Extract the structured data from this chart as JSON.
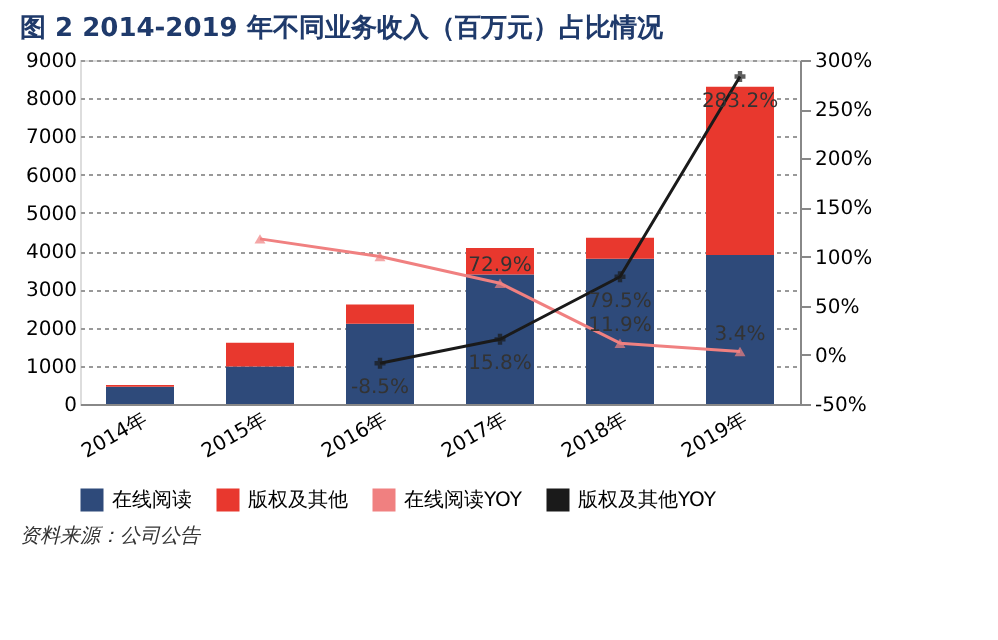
{
  "chart_data": {
    "type": "bar",
    "title": "图 2 2014-2019 年不同业务收入（百万元）占比情况",
    "categories": [
      "2014年",
      "2015年",
      "2016年",
      "2017年",
      "2018年",
      "2019年"
    ],
    "stacked": true,
    "series": [
      {
        "name": "在线阅读",
        "color": "#2e4a7a",
        "values": [
          450,
          980,
          2100,
          3390,
          3800,
          3900
        ]
      },
      {
        "name": "版权及其他",
        "color": "#e8382e",
        "values": [
          50,
          620,
          500,
          690,
          550,
          4400
        ]
      },
      {
        "name": "在线阅读YOY",
        "type": "line",
        "axis": "y2",
        "color": "#f08080",
        "marker": "triangle",
        "values": [
          null,
          118,
          100,
          72.9,
          11.9,
          3.4
        ],
        "value_labels": [
          null,
          null,
          null,
          "72.9%",
          "11.9%",
          "3.4%"
        ]
      },
      {
        "name": "版权及其他YOY",
        "type": "line",
        "axis": "y2",
        "color": "#1a1a1a",
        "marker": "cross",
        "values": [
          null,
          null,
          -8.5,
          15.8,
          79.5,
          283.2
        ],
        "value_labels": [
          null,
          null,
          "-8.5%",
          "15.8%",
          "79.5%",
          "283.2%"
        ]
      }
    ],
    "ylim": [
      0,
      9000
    ],
    "yticks": [
      0,
      1000,
      2000,
      3000,
      4000,
      5000,
      6000,
      7000,
      8000,
      9000
    ],
    "y2lim": [
      -50,
      300
    ],
    "y2ticks": [
      {
        "value": -50,
        "label": "-50%"
      },
      {
        "value": 0,
        "label": "0%"
      },
      {
        "value": 50,
        "label": "50%"
      },
      {
        "value": 100,
        "label": "100%"
      },
      {
        "value": 150,
        "label": "150%"
      },
      {
        "value": 200,
        "label": "200%"
      },
      {
        "value": 250,
        "label": "250%"
      },
      {
        "value": 300,
        "label": "300%"
      }
    ],
    "grid": "y",
    "legend": "bottom",
    "annotations": [
      "资料来源：公司公告"
    ]
  }
}
